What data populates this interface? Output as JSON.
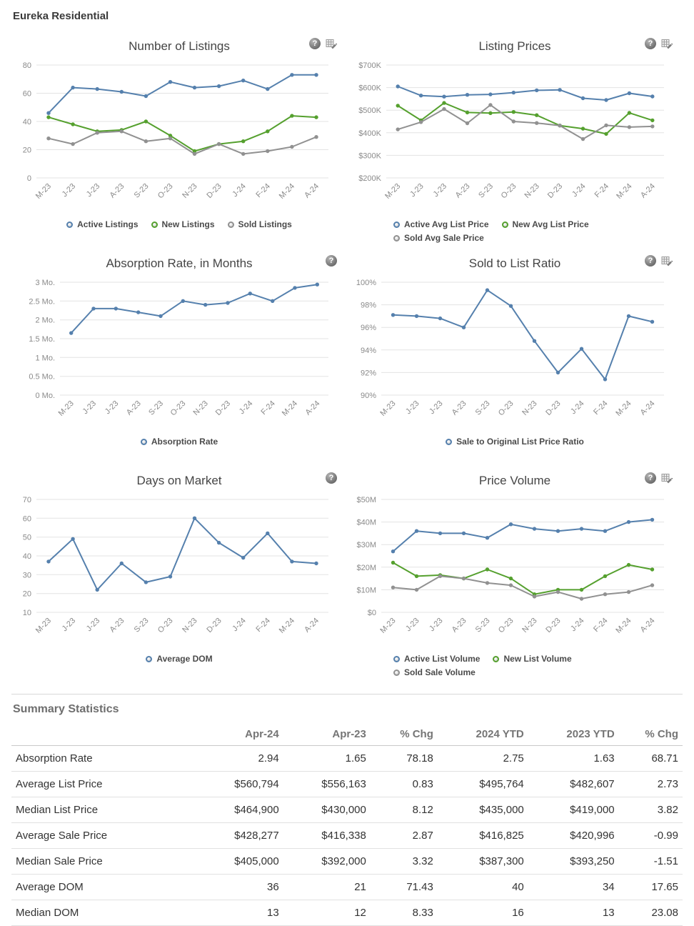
{
  "page_title": "Eureka Residential",
  "colors": {
    "blue": "#5580ad",
    "green": "#55a02e",
    "gray": "#919191"
  },
  "icon_glyphs": {
    "help": "?"
  },
  "chart_data": [
    {
      "type": "line",
      "title": "Number of Listings",
      "categories": [
        "M-23",
        "J-23",
        "J-23",
        "A-23",
        "S-23",
        "O-23",
        "N-23",
        "D-23",
        "J-24",
        "F-24",
        "M-24",
        "A-24"
      ],
      "ylim": [
        0,
        80
      ],
      "yticks": [
        0,
        20,
        40,
        60,
        80
      ],
      "ytick_labels": [
        "0",
        "20",
        "40",
        "60",
        "80"
      ],
      "grid": true,
      "legend_position": "bottom",
      "icons": [
        "help",
        "edit"
      ],
      "series": [
        {
          "name": "Active Listings",
          "color": "blue",
          "values": [
            46,
            64,
            63,
            61,
            58,
            68,
            64,
            65,
            69,
            63,
            73,
            73
          ]
        },
        {
          "name": "New Listings",
          "color": "green",
          "values": [
            43,
            38,
            33,
            34,
            40,
            30,
            19,
            24,
            26,
            33,
            44,
            43
          ]
        },
        {
          "name": "Sold Listings",
          "color": "gray",
          "values": [
            28,
            24,
            32,
            33,
            26,
            28,
            17,
            24,
            17,
            19,
            22,
            29
          ]
        }
      ]
    },
    {
      "type": "line",
      "title": "Listing Prices",
      "categories": [
        "M-23",
        "J-23",
        "J-23",
        "A-23",
        "S-23",
        "O-23",
        "N-23",
        "D-23",
        "J-24",
        "F-24",
        "M-24",
        "A-24"
      ],
      "ylim": [
        200000,
        700000
      ],
      "yticks": [
        200000,
        300000,
        400000,
        500000,
        600000,
        700000
      ],
      "ytick_labels": [
        "$200K",
        "$300K",
        "$400K",
        "$500K",
        "$600K",
        "$700K"
      ],
      "grid": true,
      "legend_position": "bottom",
      "icons": [
        "help",
        "edit"
      ],
      "series": [
        {
          "name": "Active Avg List Price",
          "color": "blue",
          "values": [
            605000,
            565000,
            560000,
            568000,
            570000,
            578000,
            588000,
            590000,
            553000,
            545000,
            575000,
            560794
          ]
        },
        {
          "name": "New Avg List Price",
          "color": "green",
          "values": [
            520000,
            455000,
            532000,
            490000,
            487000,
            492000,
            478000,
            432000,
            418000,
            395000,
            488000,
            455000
          ]
        },
        {
          "name": "Sold Avg Sale Price",
          "color": "gray",
          "values": [
            415000,
            447000,
            505000,
            442000,
            523000,
            450000,
            443000,
            432000,
            372000,
            433000,
            425000,
            428277
          ]
        }
      ]
    },
    {
      "type": "line",
      "title": "Absorption Rate, in Months",
      "categories": [
        "M-23",
        "J-23",
        "J-23",
        "A-23",
        "S-23",
        "O-23",
        "N-23",
        "D-23",
        "J-24",
        "F-24",
        "M-24",
        "A-24"
      ],
      "ylim": [
        0,
        3
      ],
      "yticks": [
        0,
        0.5,
        1,
        1.5,
        2,
        2.5,
        3
      ],
      "ytick_labels": [
        "0 Mo.",
        "0.5 Mo.",
        "1 Mo.",
        "1.5 Mo.",
        "2 Mo.",
        "2.5 Mo.",
        "3 Mo."
      ],
      "grid": true,
      "legend_position": "bottom",
      "icons": [
        "help"
      ],
      "series": [
        {
          "name": "Absorption Rate",
          "color": "blue",
          "values": [
            1.65,
            2.3,
            2.3,
            2.2,
            2.1,
            2.5,
            2.4,
            2.45,
            2.7,
            2.5,
            2.85,
            2.94
          ]
        }
      ]
    },
    {
      "type": "line",
      "title": "Sold to List Ratio",
      "categories": [
        "M-23",
        "J-23",
        "J-23",
        "A-23",
        "S-23",
        "O-23",
        "N-23",
        "D-23",
        "J-24",
        "F-24",
        "M-24",
        "A-24"
      ],
      "ylim": [
        90,
        100
      ],
      "yticks": [
        90,
        92,
        94,
        96,
        98,
        100
      ],
      "ytick_labels": [
        "90%",
        "92%",
        "94%",
        "96%",
        "98%",
        "100%"
      ],
      "grid": true,
      "legend_position": "bottom",
      "icons": [
        "help",
        "edit"
      ],
      "series": [
        {
          "name": "Sale to Original List Price Ratio",
          "color": "blue",
          "values": [
            97.1,
            97.0,
            96.8,
            96.0,
            99.3,
            97.9,
            94.8,
            92.0,
            94.1,
            91.4,
            97.0,
            96.5
          ]
        }
      ]
    },
    {
      "type": "line",
      "title": "Days on Market",
      "categories": [
        "M-23",
        "J-23",
        "J-23",
        "A-23",
        "S-23",
        "O-23",
        "N-23",
        "D-23",
        "J-24",
        "F-24",
        "M-24",
        "A-24"
      ],
      "ylim": [
        10,
        70
      ],
      "yticks": [
        10,
        20,
        30,
        40,
        50,
        60,
        70
      ],
      "ytick_labels": [
        "10",
        "20",
        "30",
        "40",
        "50",
        "60",
        "70"
      ],
      "grid": true,
      "legend_position": "bottom",
      "icons": [
        "help"
      ],
      "series": [
        {
          "name": "Average DOM",
          "color": "blue",
          "values": [
            37,
            49,
            22,
            36,
            26,
            29,
            60,
            47,
            39,
            52,
            37,
            36
          ]
        }
      ]
    },
    {
      "type": "line",
      "title": "Price Volume",
      "categories": [
        "M-23",
        "J-23",
        "J-23",
        "A-23",
        "S-23",
        "O-23",
        "N-23",
        "D-23",
        "J-24",
        "F-24",
        "M-24",
        "A-24"
      ],
      "ylim": [
        0,
        50
      ],
      "yticks": [
        0,
        10,
        20,
        30,
        40,
        50
      ],
      "ytick_labels": [
        "$0",
        "$10M",
        "$20M",
        "$30M",
        "$40M",
        "$50M"
      ],
      "grid": true,
      "legend_position": "bottom",
      "icons": [
        "help",
        "edit"
      ],
      "series": [
        {
          "name": "Active List Volume",
          "color": "blue",
          "values": [
            27,
            36,
            35,
            35,
            33,
            39,
            37,
            36,
            37,
            36,
            40,
            41
          ]
        },
        {
          "name": "New List Volume",
          "color": "green",
          "values": [
            22,
            16,
            16.5,
            15,
            19,
            15,
            8,
            10,
            10,
            16,
            21,
            19
          ]
        },
        {
          "name": "Sold Sale Volume",
          "color": "gray",
          "values": [
            11,
            10,
            16,
            15,
            13,
            12,
            7,
            9,
            6,
            8,
            9,
            12
          ]
        }
      ]
    }
  ],
  "summary": {
    "title": "Summary Statistics",
    "columns": [
      "",
      "Apr-24",
      "Apr-23",
      "% Chg",
      "2024 YTD",
      "2023 YTD",
      "% Chg"
    ],
    "rows": [
      [
        "Absorption Rate",
        "2.94",
        "1.65",
        "78.18",
        "2.75",
        "1.63",
        "68.71"
      ],
      [
        "Average List Price",
        "$560,794",
        "$556,163",
        "0.83",
        "$495,764",
        "$482,607",
        "2.73"
      ],
      [
        "Median List Price",
        "$464,900",
        "$430,000",
        "8.12",
        "$435,000",
        "$419,000",
        "3.82"
      ],
      [
        "Average Sale Price",
        "$428,277",
        "$416,338",
        "2.87",
        "$416,825",
        "$420,996",
        "-0.99"
      ],
      [
        "Median Sale Price",
        "$405,000",
        "$392,000",
        "3.32",
        "$387,300",
        "$393,250",
        "-1.51"
      ],
      [
        "Average DOM",
        "36",
        "21",
        "71.43",
        "40",
        "34",
        "17.65"
      ],
      [
        "Median DOM",
        "13",
        "12",
        "8.33",
        "16",
        "13",
        "23.08"
      ]
    ]
  }
}
